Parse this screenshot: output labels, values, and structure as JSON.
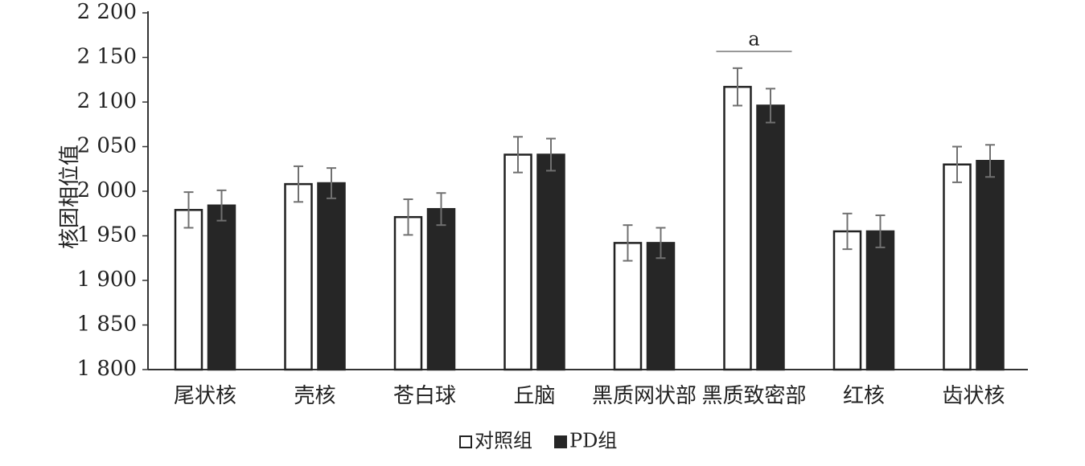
{
  "chart_data": {
    "type": "bar",
    "title": "",
    "xlabel": "",
    "ylabel": "核团相位值",
    "ylim": [
      1800,
      2200
    ],
    "yticks": [
      1800,
      1850,
      1900,
      1950,
      2000,
      2050,
      2100,
      2150,
      2200
    ],
    "ytick_labels": [
      "1 800",
      "1 850",
      "1 900",
      "1 950",
      "2 000",
      "2 050",
      "2 100",
      "2 150",
      "2 200"
    ],
    "grid": false,
    "legend_position": "bottom",
    "categories": [
      "尾状核",
      "壳核",
      "苍白球",
      "丘脑",
      "黑质网状部",
      "黑质致密部",
      "红核",
      "齿状核"
    ],
    "series": [
      {
        "name": "对照组",
        "fill": "#ffffff",
        "stroke": "#222222",
        "values": [
          1979,
          2008,
          1971,
          2041,
          1942,
          2117,
          1955,
          2030
        ],
        "errors": [
          20,
          20,
          20,
          20,
          20,
          21,
          20,
          20
        ]
      },
      {
        "name": "PD组",
        "fill": "#262626",
        "stroke": "#262626",
        "values": [
          1984,
          2009,
          1980,
          2041,
          1942,
          2096,
          1955,
          2034
        ],
        "errors": [
          17,
          17,
          18,
          18,
          17,
          19,
          18,
          18
        ]
      }
    ],
    "annotations": [
      {
        "text": "a",
        "category": "黑质致密部"
      }
    ],
    "colors": {
      "axis": "#333333",
      "error_bar": "#707070"
    }
  }
}
